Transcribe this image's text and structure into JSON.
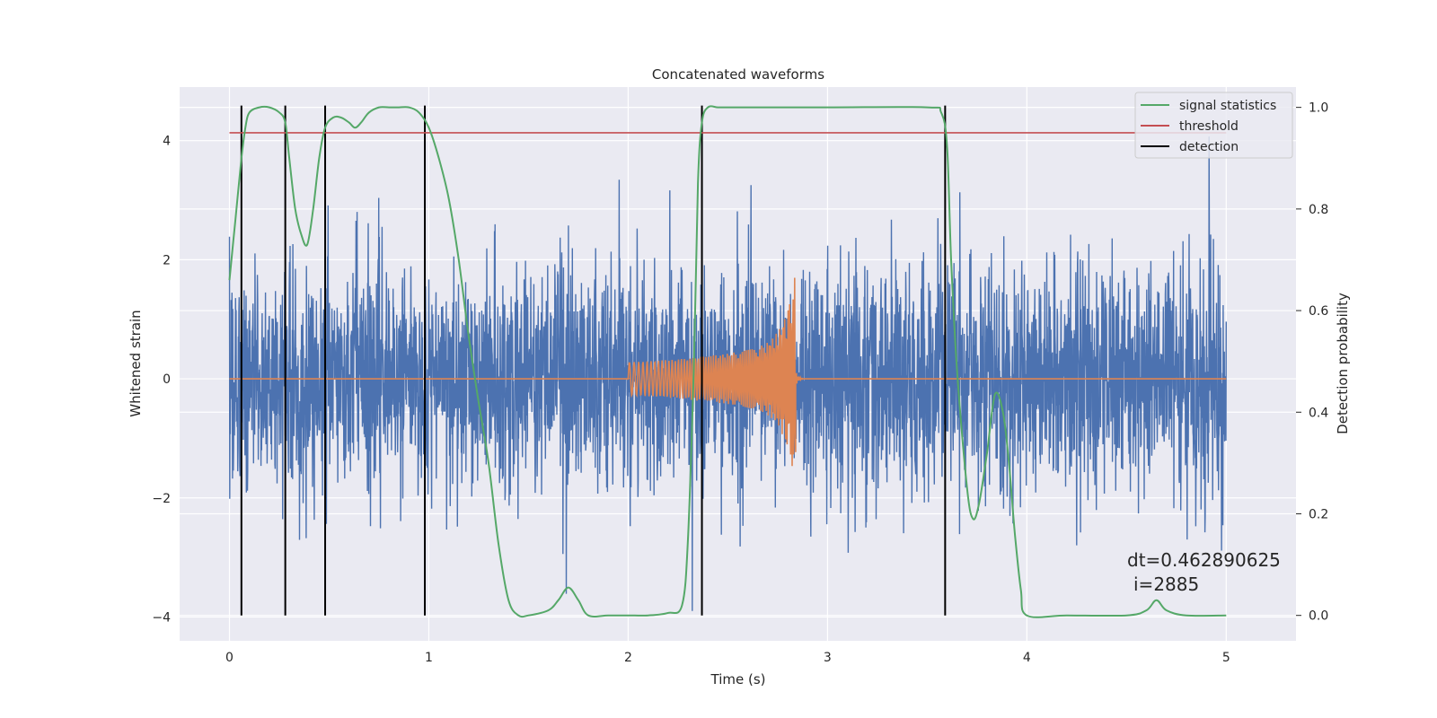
{
  "chart_data": {
    "type": "line",
    "title": "Concatenated waveforms",
    "xlabel": "Time (s)",
    "ylabel": "Whitened strain",
    "ylabel_right": "Detection probability",
    "xlim": [
      -0.25,
      5.35
    ],
    "ylim": [
      -4.4,
      4.9
    ],
    "ylim_right": [
      -0.05,
      1.04
    ],
    "xticks": [
      0,
      1,
      2,
      3,
      4,
      5
    ],
    "xtick_labels": [
      "0",
      "1",
      "2",
      "3",
      "4",
      "5"
    ],
    "yticks": [
      -4,
      -2,
      0,
      2,
      4
    ],
    "ytick_labels": [
      "−4",
      "−2",
      "0",
      "2",
      "4"
    ],
    "yticks_right": [
      0.0,
      0.2,
      0.4,
      0.6,
      0.8,
      1.0
    ],
    "ytick_labels_right": [
      "0.0",
      "0.2",
      "0.4",
      "0.6",
      "0.8",
      "1.0"
    ],
    "grid": true,
    "legend_position": "top-right",
    "colors": {
      "background": "#eaeaf2",
      "strain": "#4c72b0",
      "waveform": "#dd8452",
      "signal_statistics": "#55a868",
      "threshold": "#c44e52",
      "detection": "#000000"
    },
    "series": [
      {
        "name": "signal statistics",
        "axis": "right",
        "x": [
          0.0,
          0.03,
          0.06,
          0.08,
          0.1,
          0.15,
          0.2,
          0.25,
          0.28,
          0.3,
          0.33,
          0.36,
          0.39,
          0.42,
          0.45,
          0.48,
          0.52,
          0.56,
          0.6,
          0.63,
          0.66,
          0.7,
          0.75,
          0.8,
          0.85,
          0.9,
          0.95,
          1.0,
          1.05,
          1.1,
          1.15,
          1.2,
          1.25,
          1.3,
          1.35,
          1.4,
          1.45,
          1.5,
          1.6,
          1.65,
          1.7,
          1.75,
          1.8,
          1.9,
          2.0,
          2.1,
          2.2,
          2.27,
          2.3,
          2.33,
          2.35,
          2.37,
          2.4,
          2.45,
          2.5,
          3.0,
          3.5,
          3.57,
          3.6,
          3.62,
          3.65,
          3.7,
          3.73,
          3.76,
          3.8,
          3.84,
          3.88,
          3.91,
          3.94,
          3.97,
          4.0,
          4.2,
          4.5,
          4.6,
          4.65,
          4.7,
          4.8,
          5.0
        ],
        "values": [
          0.66,
          0.78,
          0.9,
          0.96,
          0.99,
          1.0,
          1.0,
          0.99,
          0.97,
          0.9,
          0.8,
          0.75,
          0.73,
          0.8,
          0.9,
          0.96,
          0.98,
          0.98,
          0.97,
          0.96,
          0.97,
          0.99,
          1.0,
          1.0,
          1.0,
          1.0,
          0.99,
          0.96,
          0.9,
          0.82,
          0.7,
          0.55,
          0.42,
          0.3,
          0.14,
          0.03,
          0.0,
          0.0,
          0.01,
          0.03,
          0.055,
          0.03,
          0.0,
          0.0,
          0.0,
          0.0,
          0.005,
          0.02,
          0.15,
          0.5,
          0.85,
          0.97,
          1.0,
          1.0,
          1.0,
          1.0,
          1.0,
          0.99,
          0.92,
          0.7,
          0.48,
          0.25,
          0.19,
          0.22,
          0.32,
          0.435,
          0.4,
          0.3,
          0.16,
          0.05,
          0.0,
          0.0,
          0.0,
          0.01,
          0.03,
          0.01,
          0.0,
          0.0
        ]
      },
      {
        "name": "threshold",
        "axis": "right",
        "x": [
          0.0,
          5.0
        ],
        "values": [
          0.95,
          0.95
        ]
      },
      {
        "name": "detection",
        "axis": "right",
        "x": [
          0.06,
          0.28,
          0.48,
          0.98,
          2.37,
          3.59
        ],
        "values": [
          1.0,
          1.0,
          1.0,
          1.0,
          1.0,
          1.0
        ]
      }
    ],
    "annotations": [
      "dt=0.462890625",
      "i=2885"
    ]
  }
}
